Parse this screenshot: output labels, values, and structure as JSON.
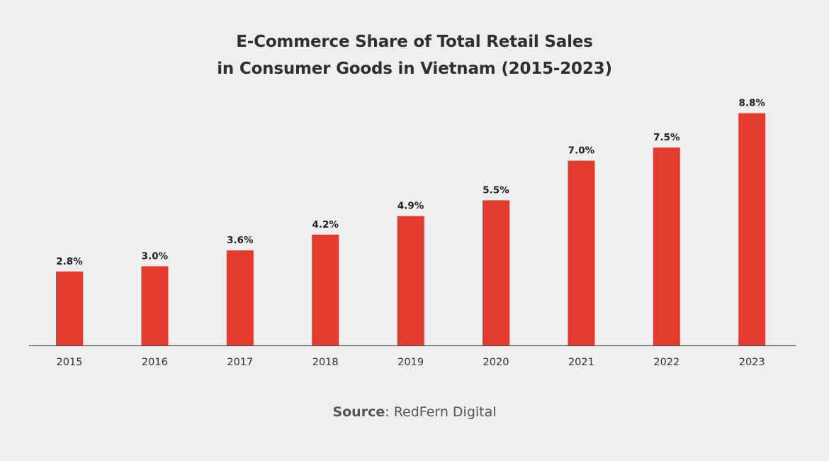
{
  "title_lines": [
    "E-Commerce Share of Total Retail Sales",
    "in Consumer Goods in Vietnam (2015-2023)"
  ],
  "source": {
    "label": "Source",
    "separator": ": ",
    "text": "RedFern Digital"
  },
  "colors": {
    "bar": "#e33b2e",
    "background": "#efefef",
    "axis": "#555555",
    "text": "#333333"
  },
  "chart_data": {
    "type": "bar",
    "title": "E-Commerce Share of Total Retail Sales in Consumer Goods in Vietnam (2015-2023)",
    "categories": [
      "2015",
      "2016",
      "2017",
      "2018",
      "2019",
      "2020",
      "2021",
      "2022",
      "2023"
    ],
    "values": [
      2.8,
      3.0,
      3.6,
      4.2,
      4.9,
      5.5,
      7.0,
      7.5,
      8.8
    ],
    "value_labels": [
      "2.8%",
      "3.0%",
      "3.6%",
      "4.2%",
      "4.9%",
      "5.5%",
      "7.0%",
      "7.5%",
      "8.8%"
    ],
    "unit": "%",
    "xlabel": "",
    "ylabel": "",
    "grid": false,
    "legend": "none"
  }
}
